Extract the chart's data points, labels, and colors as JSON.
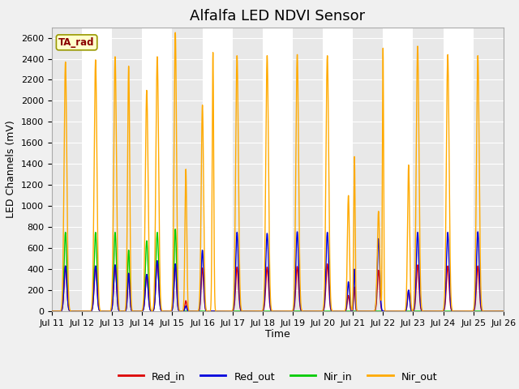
{
  "title": "Alfalfa LED NDVI Sensor",
  "xlabel": "Time",
  "ylabel": "LED Channels (mV)",
  "ylim": [
    0,
    2700
  ],
  "background_color": "#f0f0f0",
  "plot_bg_color": "#ffffff",
  "alt_band_color": "#e8e8e8",
  "grid_color": "#ffffff",
  "legend_label": "TA_rad",
  "series": {
    "Red_in": {
      "color": "#dd0000",
      "lw": 1.0
    },
    "Red_out": {
      "color": "#0000dd",
      "lw": 1.0
    },
    "Nir_in": {
      "color": "#00cc00",
      "lw": 1.0
    },
    "Nir_out": {
      "color": "#ffaa00",
      "lw": 1.0
    }
  },
  "x_tick_labels": [
    "Jul 11",
    "Jul 12",
    "Jul 13",
    "Jul 14",
    "Jul 15",
    "Jul 16",
    "Jul 17",
    "Jul 18",
    "Jul 19",
    "Jul 20",
    "Jul 21",
    "Jul 22",
    "Jul 23",
    "Jul 24",
    "Jul 25",
    "Jul 26"
  ],
  "title_fontsize": 13,
  "axis_label_fontsize": 9,
  "tick_fontsize": 8,
  "pulses_early": [
    [
      0.45,
      2370,
      750,
      430,
      430,
      0.045
    ],
    [
      1.45,
      2390,
      750,
      430,
      430,
      0.045
    ],
    [
      2.1,
      2420,
      750,
      440,
      440,
      0.045
    ],
    [
      2.55,
      2330,
      580,
      360,
      360,
      0.035
    ],
    [
      3.15,
      2100,
      670,
      350,
      350,
      0.045
    ],
    [
      3.5,
      2420,
      750,
      480,
      480,
      0.045
    ],
    [
      4.1,
      2650,
      780,
      450,
      450,
      0.04
    ],
    [
      4.45,
      1350,
      0,
      100,
      50,
      0.03
    ]
  ],
  "pulses_late": [
    [
      5.0,
      1960,
      0,
      410,
      580,
      0.04
    ],
    [
      5.35,
      2460,
      0,
      0,
      0,
      0.025
    ],
    [
      6.15,
      2430,
      0,
      420,
      750,
      0.045
    ],
    [
      7.15,
      2430,
      0,
      420,
      740,
      0.045
    ],
    [
      8.15,
      2440,
      0,
      425,
      755,
      0.045
    ],
    [
      9.15,
      2430,
      0,
      450,
      750,
      0.045
    ],
    [
      9.85,
      1100,
      0,
      150,
      280,
      0.035
    ],
    [
      10.05,
      1470,
      0,
      230,
      400,
      0.025
    ],
    [
      10.85,
      950,
      0,
      390,
      690,
      0.04
    ],
    [
      11.0,
      2500,
      0,
      0,
      0,
      0.02
    ],
    [
      11.85,
      1390,
      0,
      200,
      200,
      0.035
    ],
    [
      12.15,
      2520,
      0,
      440,
      750,
      0.045
    ],
    [
      13.15,
      2440,
      0,
      430,
      750,
      0.045
    ],
    [
      14.15,
      2430,
      0,
      430,
      755,
      0.045
    ]
  ]
}
